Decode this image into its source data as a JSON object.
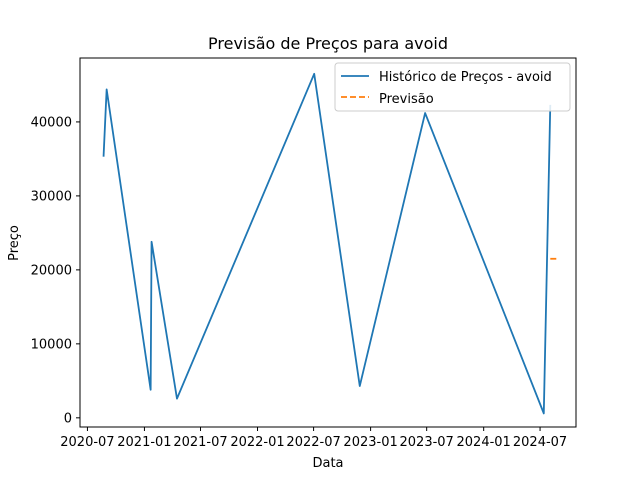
{
  "chart_data": {
    "type": "line",
    "title": "Previsão de Preços para avoid",
    "xlabel": "Data",
    "ylabel": "Preço",
    "x_tick_labels": [
      "2020-07",
      "2021-01",
      "2021-07",
      "2022-01",
      "2022-07",
      "2023-01",
      "2023-07",
      "2024-01",
      "2024-07"
    ],
    "y_ticks": [
      0,
      10000,
      20000,
      30000,
      40000
    ],
    "y_tick_labels": [
      "0",
      "10000",
      "20000",
      "30000",
      "40000"
    ],
    "xlim": [
      "2020-06-07",
      "2024-10-25"
    ],
    "ylim": [
      -1240,
      48640
    ],
    "grid": false,
    "legend": "top-right",
    "series": [
      {
        "name": "Histórico de Preços - avoid",
        "style": "solid",
        "color": "#1f77b4",
        "points": [
          {
            "x": "2020-08-22",
            "y": 35300
          },
          {
            "x": "2020-09-01",
            "y": 44400
          },
          {
            "x": "2021-01-21",
            "y": 3800
          },
          {
            "x": "2021-01-24",
            "y": 23800
          },
          {
            "x": "2021-04-16",
            "y": 2600
          },
          {
            "x": "2022-07-03",
            "y": 46500
          },
          {
            "x": "2022-11-27",
            "y": 4300
          },
          {
            "x": "2023-06-26",
            "y": 41200
          },
          {
            "x": "2024-07-13",
            "y": 600
          },
          {
            "x": "2024-08-03",
            "y": 42300
          }
        ]
      },
      {
        "name": "Previsão",
        "style": "dashed",
        "color": "#ff7f0e",
        "points": [
          {
            "x": "2024-08-03",
            "y": 21500
          },
          {
            "x": "2024-08-30",
            "y": 21500
          }
        ]
      }
    ]
  }
}
